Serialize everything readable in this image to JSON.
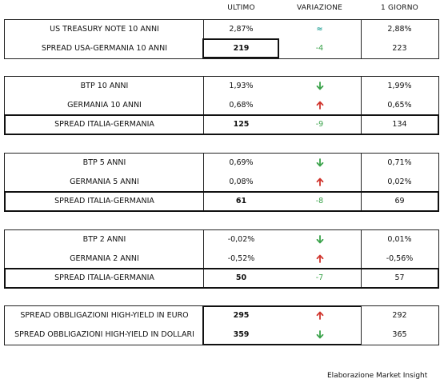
{
  "columns": {
    "ultimo": "ULTIMO",
    "variazione": "VARIAZIONE",
    "giorno": "1 GIORNO"
  },
  "colors": {
    "up": "#d0342c",
    "down": "#3aa24a",
    "neutral": "#2aa39a",
    "change_text": "#3aa24a"
  },
  "blocks": [
    {
      "rows": [
        {
          "label": "US TREASURY NOTE 10 ANNI",
          "ultimo": "2,87%",
          "variazione": "≈",
          "var_icon": "approx-icon",
          "giorno": "2,88%",
          "highlight": false
        },
        {
          "label": "SPREAD USA-GERMANIA 10 ANNI",
          "ultimo": "219",
          "variazione": "-4",
          "var_icon": "",
          "giorno": "223",
          "highlight": false
        }
      ]
    },
    {
      "rows": [
        {
          "label": "BTP 10 ANNI",
          "ultimo": "1,93%",
          "variazione": "",
          "var_icon": "arrow-down-icon",
          "giorno": "1,99%",
          "highlight": false
        },
        {
          "label": "GERMANIA 10 ANNI",
          "ultimo": "0,68%",
          "variazione": "",
          "var_icon": "arrow-up-icon",
          "giorno": "0,65%",
          "highlight": false
        },
        {
          "label": "SPREAD ITALIA-GERMANIA",
          "ultimo": "125",
          "variazione": "-9",
          "var_icon": "",
          "giorno": "134",
          "highlight": true
        }
      ]
    },
    {
      "rows": [
        {
          "label": "BTP 5 ANNI",
          "ultimo": "0,69%",
          "variazione": "",
          "var_icon": "arrow-down-icon",
          "giorno": "0,71%",
          "highlight": false
        },
        {
          "label": "GERMANIA 5 ANNI",
          "ultimo": "0,08%",
          "variazione": "",
          "var_icon": "arrow-up-icon",
          "giorno": "0,02%",
          "highlight": false
        },
        {
          "label": "SPREAD ITALIA-GERMANIA",
          "ultimo": "61",
          "variazione": "-8",
          "var_icon": "",
          "giorno": "69",
          "highlight": true
        }
      ]
    },
    {
      "rows": [
        {
          "label": "BTP 2 ANNI",
          "ultimo": "-0,02%",
          "variazione": "",
          "var_icon": "arrow-down-icon",
          "giorno": "0,01%",
          "highlight": false
        },
        {
          "label": "GERMANIA 2 ANNI",
          "ultimo": "-0,52%",
          "variazione": "",
          "var_icon": "arrow-up-icon",
          "giorno": "-0,56%",
          "highlight": false
        },
        {
          "label": "SPREAD ITALIA-GERMANIA",
          "ultimo": "50",
          "variazione": "-7",
          "var_icon": "",
          "giorno": "57",
          "highlight": true
        }
      ]
    },
    {
      "rows": [
        {
          "label": "SPREAD OBBLIGAZIONI HIGH-YIELD IN EURO",
          "ultimo": "295",
          "variazione": "",
          "var_icon": "arrow-up-icon",
          "giorno": "292",
          "highlight": false,
          "bold_ultimo": true
        },
        {
          "label": "SPREAD OBBLIGAZIONI HIGH-YIELD IN DOLLARI",
          "ultimo": "359",
          "variazione": "",
          "var_icon": "arrow-down-icon",
          "giorno": "365",
          "highlight": false,
          "bold_ultimo": true
        }
      ]
    }
  ],
  "footer": "Elaborazione Market Insight"
}
